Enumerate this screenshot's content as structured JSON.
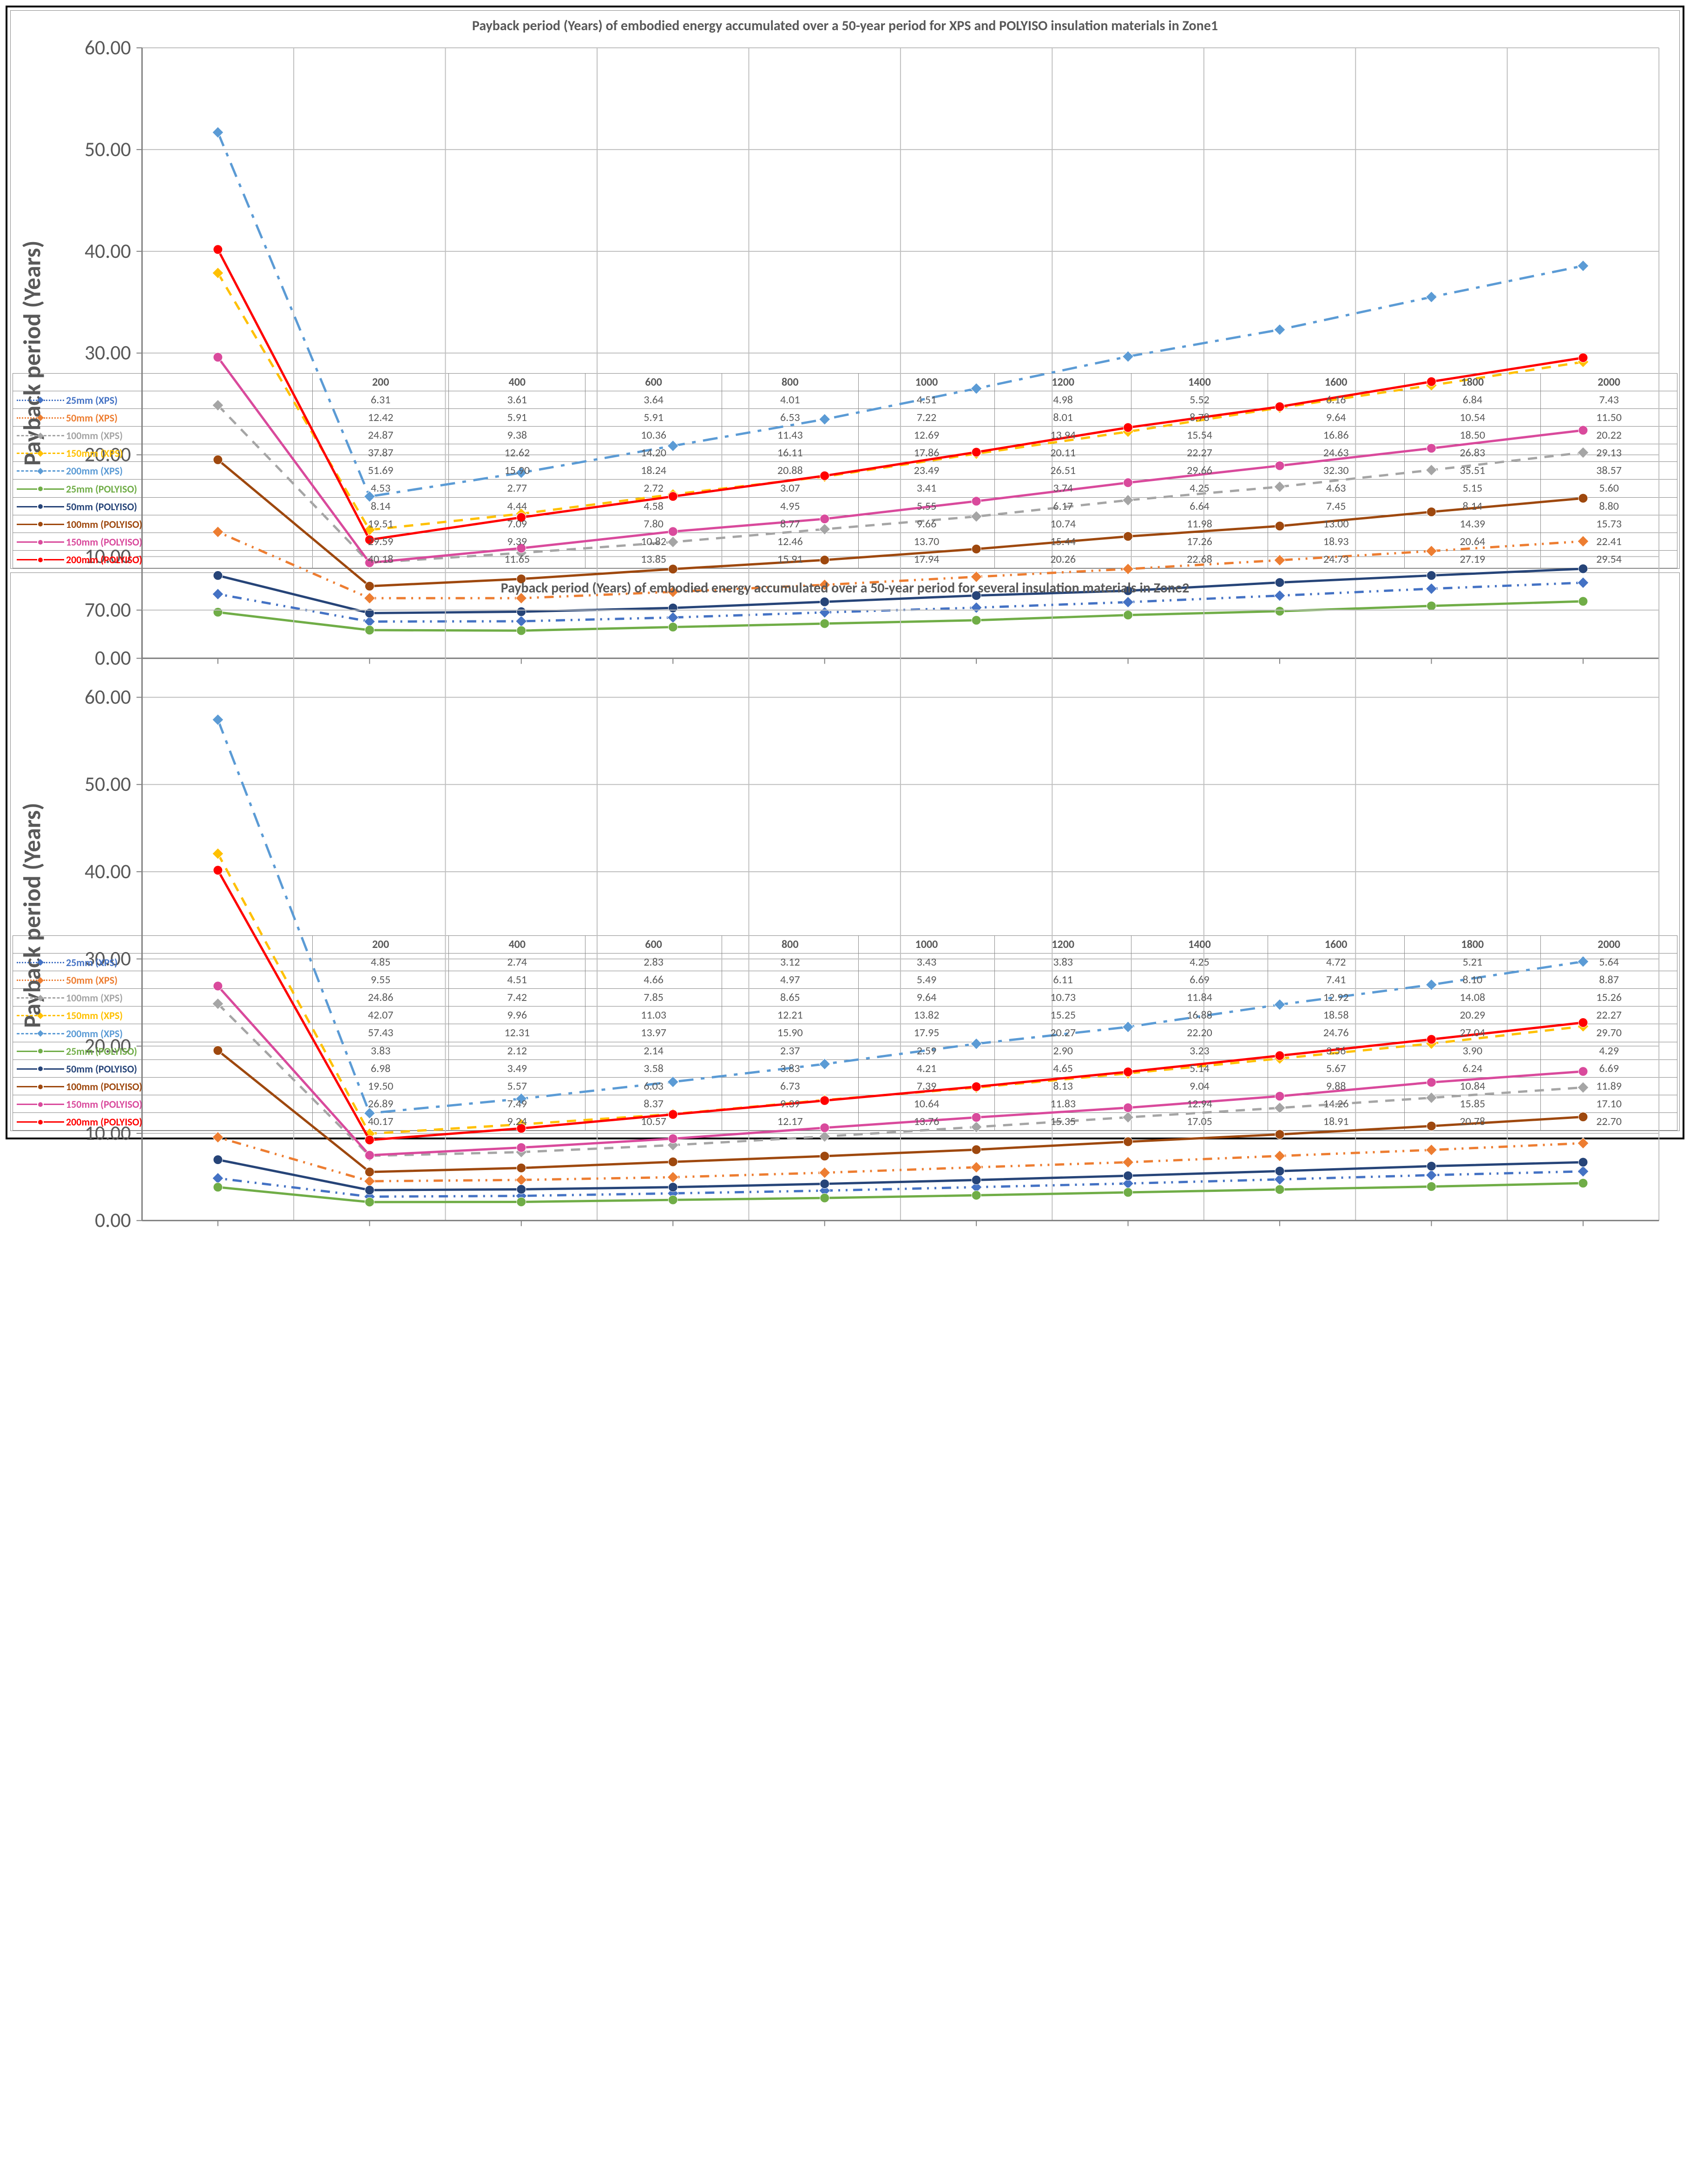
{
  "page": {
    "border_color": "#000000",
    "background": "#ffffff"
  },
  "charts": [
    {
      "id": "zone1",
      "title": "Payback period (Years) of embodied energy accumulated over a 50-year period for XPS and POLYISO insulation materials in Zone1",
      "ylabel": "Payback period (Years)",
      "ylim": [
        0,
        60
      ],
      "ytick_step": 10,
      "categories": [
        "200",
        "400",
        "600",
        "800",
        "1000",
        "1200",
        "1400",
        "1600",
        "1800",
        "2000"
      ],
      "title_fontsize": 30,
      "label_fontsize": 26,
      "tick_fontsize": 22,
      "grid_color": "#bfbfbf",
      "axis_color": "#808080",
      "background_color": "#ffffff",
      "series": [
        {
          "name": "25mm (XPS)",
          "color": "#4472c4",
          "marker": "diamond",
          "line_style": "dash-dot-dot",
          "line_width": 2.5,
          "values": [
            6.31,
            3.61,
            3.64,
            4.01,
            4.51,
            4.98,
            5.52,
            6.16,
            6.84,
            7.43
          ]
        },
        {
          "name": "50mm (XPS)",
          "color": "#ed7d31",
          "marker": "diamond",
          "line_style": "dash-dot-dot",
          "line_width": 2.5,
          "values": [
            12.42,
            5.91,
            5.91,
            6.53,
            7.22,
            8.01,
            8.78,
            9.64,
            10.54,
            11.5
          ]
        },
        {
          "name": "100mm (XPS)",
          "color": "#a5a5a5",
          "marker": "diamond",
          "line_style": "dash-dash",
          "line_width": 2.5,
          "values": [
            24.87,
            9.38,
            10.36,
            11.43,
            12.69,
            13.94,
            15.54,
            16.86,
            18.5,
            20.22
          ]
        },
        {
          "name": "150mm (XPS)",
          "color": "#ffc000",
          "marker": "diamond",
          "line_style": "dash-dash",
          "line_width": 2.5,
          "values": [
            37.87,
            12.62,
            14.2,
            16.11,
            17.86,
            20.11,
            22.27,
            24.63,
            26.83,
            29.13
          ]
        },
        {
          "name": "200mm (XPS)",
          "color": "#5b9bd5",
          "marker": "diamond",
          "line_style": "long-dash-dot",
          "line_width": 2.5,
          "values": [
            51.69,
            15.9,
            18.24,
            20.88,
            23.49,
            26.51,
            29.66,
            32.3,
            35.51,
            38.57
          ]
        },
        {
          "name": "25mm (POLYISO)",
          "color": "#70ad47",
          "marker": "circle",
          "line_style": "solid",
          "line_width": 2.5,
          "values": [
            4.53,
            2.77,
            2.72,
            3.07,
            3.41,
            3.74,
            4.25,
            4.63,
            5.15,
            5.6
          ]
        },
        {
          "name": "50mm (POLYISO)",
          "color": "#264478",
          "marker": "circle",
          "line_style": "solid",
          "line_width": 2.5,
          "values": [
            8.14,
            4.44,
            4.58,
            4.95,
            5.55,
            6.17,
            6.64,
            7.45,
            8.14,
            8.8
          ]
        },
        {
          "name": "100mm (POLYISO)",
          "color": "#9e480e",
          "marker": "circle",
          "line_style": "solid",
          "line_width": 2.5,
          "values": [
            19.51,
            7.09,
            7.8,
            8.77,
            9.66,
            10.74,
            11.98,
            13.0,
            14.39,
            15.73
          ]
        },
        {
          "name": "150mm (POLYISO)",
          "color": "#d94a9c",
          "marker": "circle",
          "line_style": "solid",
          "line_width": 2.5,
          "values": [
            29.59,
            9.39,
            10.82,
            12.46,
            13.7,
            15.44,
            17.26,
            18.93,
            20.64,
            22.41
          ]
        },
        {
          "name": "200mm (POLYISO)",
          "color": "#ff0000",
          "marker": "circle",
          "line_style": "solid",
          "line_width": 2.5,
          "values": [
            40.18,
            11.65,
            13.85,
            15.91,
            17.94,
            20.26,
            22.68,
            24.73,
            27.19,
            29.54
          ]
        }
      ]
    },
    {
      "id": "zone2",
      "title": "Payback period (Years) of embodied energy accumulated over a 50-year period for several insulation materials in Zone2",
      "ylabel": "Payback period (Years)",
      "ylim": [
        0,
        70
      ],
      "ytick_step": 10,
      "categories": [
        "200",
        "400",
        "600",
        "800",
        "1000",
        "1200",
        "1400",
        "1600",
        "1800",
        "2000"
      ],
      "title_fontsize": 30,
      "label_fontsize": 26,
      "tick_fontsize": 22,
      "grid_color": "#bfbfbf",
      "axis_color": "#808080",
      "background_color": "#ffffff",
      "series": [
        {
          "name": "25mm (XPS)",
          "color": "#4472c4",
          "marker": "diamond",
          "line_style": "dash-dot-dot",
          "line_width": 2.5,
          "values": [
            4.85,
            2.74,
            2.83,
            3.12,
            3.43,
            3.83,
            4.25,
            4.72,
            5.21,
            5.64
          ]
        },
        {
          "name": "50mm (XPS)",
          "color": "#ed7d31",
          "marker": "diamond",
          "line_style": "dash-dot-dot",
          "line_width": 2.5,
          "values": [
            9.55,
            4.51,
            4.66,
            4.97,
            5.49,
            6.11,
            6.69,
            7.41,
            8.1,
            8.87
          ]
        },
        {
          "name": "100mm (XPS)",
          "color": "#a5a5a5",
          "marker": "diamond",
          "line_style": "dash-dash",
          "line_width": 2.5,
          "values": [
            24.86,
            7.42,
            7.85,
            8.65,
            9.64,
            10.73,
            11.84,
            12.92,
            14.08,
            15.26
          ]
        },
        {
          "name": "150mm (XPS)",
          "color": "#ffc000",
          "marker": "diamond",
          "line_style": "dash-dash",
          "line_width": 2.5,
          "values": [
            42.07,
            9.96,
            11.03,
            12.21,
            13.82,
            15.25,
            16.88,
            18.58,
            20.29,
            22.27
          ]
        },
        {
          "name": "200mm (XPS)",
          "color": "#5b9bd5",
          "marker": "diamond",
          "line_style": "long-dash-dot",
          "line_width": 2.5,
          "values": [
            57.43,
            12.31,
            13.97,
            15.9,
            17.95,
            20.27,
            22.2,
            24.76,
            27.04,
            29.7
          ]
        },
        {
          "name": "25mm (POLYISO)",
          "color": "#70ad47",
          "marker": "circle",
          "line_style": "solid",
          "line_width": 2.5,
          "values": [
            3.83,
            2.12,
            2.14,
            2.37,
            2.59,
            2.9,
            3.23,
            3.56,
            3.9,
            4.29
          ]
        },
        {
          "name": "50mm (POLYISO)",
          "color": "#264478",
          "marker": "circle",
          "line_style": "solid",
          "line_width": 2.5,
          "values": [
            6.98,
            3.49,
            3.58,
            3.83,
            4.21,
            4.65,
            5.14,
            5.67,
            6.24,
            6.69
          ]
        },
        {
          "name": "100mm (POLYISO)",
          "color": "#9e480e",
          "marker": "circle",
          "line_style": "solid",
          "line_width": 2.5,
          "values": [
            19.5,
            5.57,
            6.03,
            6.73,
            7.39,
            8.13,
            9.04,
            9.88,
            10.84,
            11.89
          ]
        },
        {
          "name": "150mm (POLYISO)",
          "color": "#d94a9c",
          "marker": "circle",
          "line_style": "solid",
          "line_width": 2.5,
          "values": [
            26.89,
            7.49,
            8.37,
            9.39,
            10.64,
            11.83,
            12.94,
            14.26,
            15.85,
            17.1
          ]
        },
        {
          "name": "200mm (POLYISO)",
          "color": "#ff0000",
          "marker": "circle",
          "line_style": "solid",
          "line_width": 2.5,
          "values": [
            40.17,
            9.24,
            10.57,
            12.17,
            13.76,
            15.35,
            17.05,
            18.91,
            20.78,
            22.7
          ]
        }
      ]
    }
  ]
}
